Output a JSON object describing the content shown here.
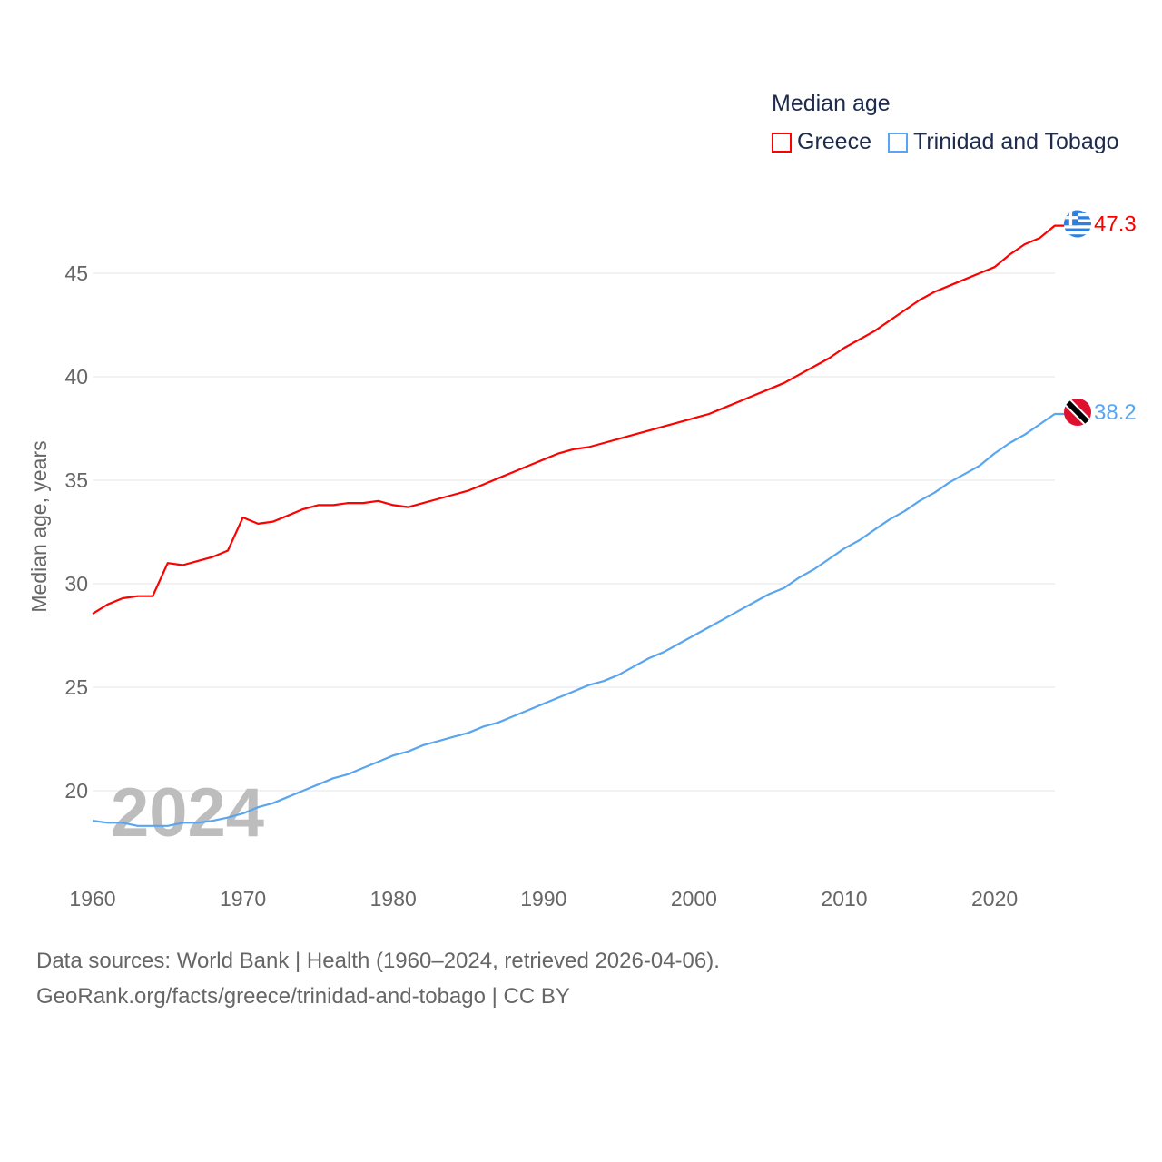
{
  "chart_data": {
    "type": "line",
    "title": "Median age",
    "ylabel": "Median age, years",
    "xlabel": "",
    "ylim": [
      16.5,
      47.5
    ],
    "xlim": [
      1960,
      2024
    ],
    "grid": true,
    "legend_position": "top-right",
    "y_ticks": [
      20,
      25,
      30,
      35,
      40,
      45
    ],
    "x_ticks": [
      1960,
      1970,
      1980,
      1990,
      2000,
      2010,
      2020
    ],
    "year_watermark": "2024",
    "x": [
      1960,
      1961,
      1962,
      1963,
      1964,
      1965,
      1966,
      1967,
      1968,
      1969,
      1970,
      1971,
      1972,
      1973,
      1974,
      1975,
      1976,
      1977,
      1978,
      1979,
      1980,
      1981,
      1982,
      1983,
      1984,
      1985,
      1986,
      1987,
      1988,
      1989,
      1990,
      1991,
      1992,
      1993,
      1994,
      1995,
      1996,
      1997,
      1998,
      1999,
      2000,
      2001,
      2002,
      2003,
      2004,
      2005,
      2006,
      2007,
      2008,
      2009,
      2010,
      2011,
      2012,
      2013,
      2014,
      2015,
      2016,
      2017,
      2018,
      2019,
      2020,
      2021,
      2022,
      2023,
      2024
    ],
    "series": [
      {
        "name": "Greece",
        "color": "#ff0000",
        "end_label": "47.3",
        "values": [
          28.55,
          29.0,
          29.3,
          29.4,
          29.4,
          31.0,
          30.9,
          31.1,
          31.3,
          31.6,
          33.2,
          32.9,
          33.0,
          33.3,
          33.6,
          33.8,
          33.8,
          33.9,
          33.9,
          34.0,
          33.8,
          33.7,
          33.9,
          34.1,
          34.3,
          34.5,
          34.8,
          35.1,
          35.4,
          35.7,
          36.0,
          36.3,
          36.5,
          36.6,
          36.8,
          37.0,
          37.2,
          37.4,
          37.6,
          37.8,
          38.0,
          38.2,
          38.5,
          38.8,
          39.1,
          39.4,
          39.7,
          40.1,
          40.5,
          40.9,
          41.4,
          41.8,
          42.2,
          42.7,
          43.2,
          43.7,
          44.1,
          44.4,
          44.7,
          45.0,
          45.3,
          45.9,
          46.4,
          46.7,
          47.3
        ]
      },
      {
        "name": "Trinidad and Tobago",
        "color": "#5aa5f0",
        "end_label": "38.2",
        "values": [
          18.55,
          18.45,
          18.45,
          18.3,
          18.3,
          18.3,
          18.45,
          18.45,
          18.55,
          18.7,
          18.9,
          19.2,
          19.4,
          19.7,
          20.0,
          20.3,
          20.6,
          20.8,
          21.1,
          21.4,
          21.7,
          21.9,
          22.2,
          22.4,
          22.6,
          22.8,
          23.1,
          23.3,
          23.6,
          23.9,
          24.2,
          24.5,
          24.8,
          25.1,
          25.3,
          25.6,
          26.0,
          26.4,
          26.7,
          27.1,
          27.5,
          27.9,
          28.3,
          28.7,
          29.1,
          29.5,
          29.8,
          30.3,
          30.7,
          31.2,
          31.7,
          32.1,
          32.6,
          33.1,
          33.5,
          34.0,
          34.4,
          34.9,
          35.3,
          35.7,
          36.3,
          36.8,
          37.2,
          37.7,
          38.2
        ]
      }
    ]
  },
  "footer": {
    "line1": "Data sources: World Bank | Health (1960–2024, retrieved 2026-04-06).",
    "line2": "GeoRank.org/facts/greece/trinidad-and-tobago | CC BY"
  }
}
